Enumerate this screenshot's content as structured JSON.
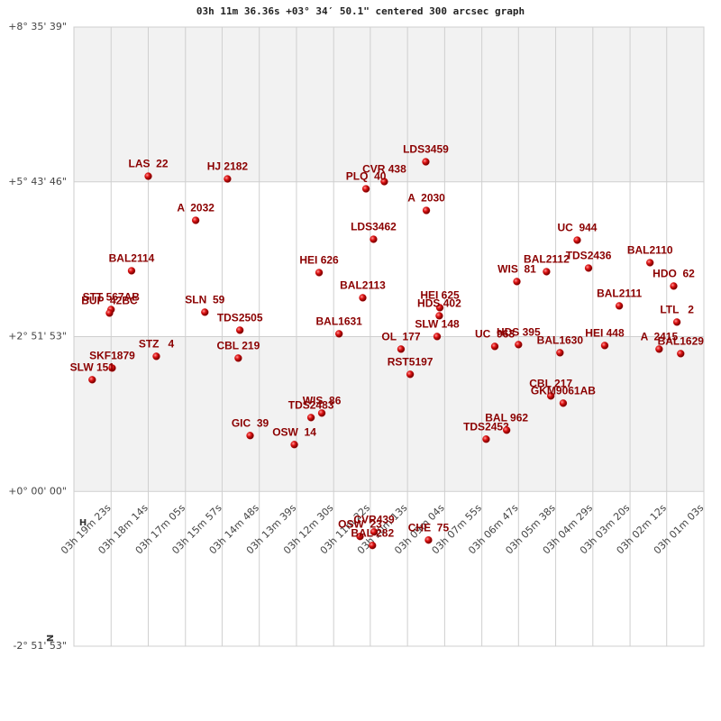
{
  "chart_data": {
    "type": "scatter",
    "title": "03h 11m 36.36s +03° 34′ 50.1\" centered 300 arcsec graph",
    "x_axis_label": "H",
    "y_axis_label": "N",
    "color": "#cc0000",
    "label_color": "#8b0000",
    "xlim": [
      1232,
      63
    ],
    "ylim": [
      -10313,
      30939
    ],
    "xticks": [
      {
        "value": 1163,
        "label": "03h 19m 23s"
      },
      {
        "value": 1094,
        "label": "03h 18m 14s"
      },
      {
        "value": 1025,
        "label": "03h 17m 05s"
      },
      {
        "value": 957,
        "label": "03h 15m 57s"
      },
      {
        "value": 888,
        "label": "03h 14m 48s"
      },
      {
        "value": 819,
        "label": "03h 13m 39s"
      },
      {
        "value": 750,
        "label": "03h 12m 30s"
      },
      {
        "value": 682,
        "label": "03h 11m 22s"
      },
      {
        "value": 613,
        "label": "03h 10m 13s"
      },
      {
        "value": 544,
        "label": "03h 09m 04s"
      },
      {
        "value": 475,
        "label": "03h 07m 55s"
      },
      {
        "value": 407,
        "label": "03h 06m 47s"
      },
      {
        "value": 338,
        "label": "03h 05m 38s"
      },
      {
        "value": 269,
        "label": "03h 04m 29s"
      },
      {
        "value": 200,
        "label": "03h 03m 20s"
      },
      {
        "value": 132,
        "label": "03h 02m 12s"
      },
      {
        "value": 63,
        "label": "03h 01m 03s"
      }
    ],
    "yticks": [
      {
        "value": 30939,
        "label": "+8° 35' 39\""
      },
      {
        "value": 20626,
        "label": "+5° 43' 46\""
      },
      {
        "value": 10313,
        "label": "+2° 51' 53\""
      },
      {
        "value": 0,
        "label": "+0° 00' 00\""
      },
      {
        "value": -10313,
        "label": "-2° 51' 53\""
      }
    ],
    "grid": true,
    "point_labels": [
      "LAS  22",
      "HJ 2182",
      "LDS3459",
      "CVR 438",
      "PLQ  40",
      "A  2030",
      "A  2032",
      "LDS3462",
      "UC  944",
      "TDS2436",
      "BAL2110",
      "HDO  62",
      "BAL2114",
      "HEI 626",
      "WIS  81",
      "BAL2112",
      "BAL2113",
      "HEI 625",
      "HDS 402",
      "BAL2111",
      "STT 567AB",
      "BUP  42BC",
      "SLN  59",
      "LTL   2",
      "TDS2505",
      "BAL1631",
      "SLW 148",
      "OL  177",
      "UC  963",
      "HDS 395",
      "BAL1630",
      "HEI 448",
      "A  2415",
      "BAL1629",
      "STZ   4",
      "CBL 219",
      "SKF1879",
      "SLW 151",
      "RST5197",
      "CBL 217",
      "GKM9061AB",
      "WIS  86",
      "TDS2483",
      "TDS2453",
      "BAL 962",
      "GIC  39",
      "OSW  14",
      "OSW  23",
      "CVR439",
      "BAL 282",
      "CHE  75"
    ],
    "x": [
      1094,
      947,
      579,
      656,
      690,
      578,
      1006,
      676,
      298,
      277,
      163,
      119,
      1125,
      777,
      410,
      355,
      696,
      553,
      554,
      220,
      1163,
      1166,
      989,
      113,
      924,
      740,
      558,
      625,
      451,
      407,
      330,
      247,
      146,
      106,
      1079,
      927,
      1161,
      1198,
      608,
      347,
      324,
      772,
      792,
      467,
      429,
      905,
      823,
      701,
      675,
      678,
      574
    ],
    "values": [
      21000,
      20820,
      21960,
      20640,
      20160,
      18720,
      18060,
      16800,
      16740,
      14880,
      15240,
      13680,
      14700,
      14580,
      13980,
      14640,
      12900,
      12240,
      11700,
      12360,
      12120,
      11880,
      11940,
      11280,
      10740,
      10500,
      10320,
      9480,
      9660,
      9780,
      9240,
      9720,
      9480,
      9180,
      9000,
      8880,
      8220,
      7440,
      7800,
      6360,
      5880,
      5220,
      4920,
      3480,
      4080,
      3720,
      3120,
      -3000,
      -2700,
      -3600,
      -3240
    ]
  }
}
